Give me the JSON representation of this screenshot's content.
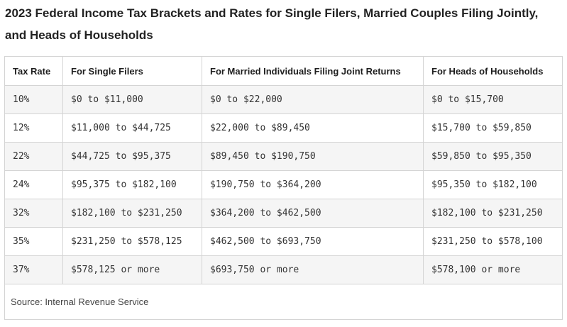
{
  "title": "2023 Federal Income Tax Brackets and Rates for Single Filers, Married Couples Filing Jointly, and Heads of Households",
  "table": {
    "headers": [
      "Tax Rate",
      "For Single Filers",
      "For Married Individuals Filing Joint Returns",
      "For Heads of Households"
    ],
    "rows": [
      [
        "10%",
        "$0 to $11,000",
        "$0 to $22,000",
        "$0 to $15,700"
      ],
      [
        "12%",
        "$11,000 to $44,725",
        "$22,000 to $89,450",
        "$15,700 to $59,850"
      ],
      [
        "22%",
        "$44,725 to $95,375",
        "$89,450 to $190,750",
        "$59,850 to $95,350"
      ],
      [
        "24%",
        "$95,375 to $182,100",
        "$190,750 to $364,200",
        "$95,350 to $182,100"
      ],
      [
        "32%",
        "$182,100 to $231,250",
        "$364,200 to $462,500",
        "$182,100 to $231,250"
      ],
      [
        "35%",
        "$231,250 to $578,125",
        "$462,500 to $693,750",
        "$231,250 to $578,100"
      ],
      [
        "37%",
        "$578,125 or more",
        "$693,750 or more",
        "$578,100 or more"
      ]
    ],
    "source": "Source: Internal Revenue Service"
  }
}
